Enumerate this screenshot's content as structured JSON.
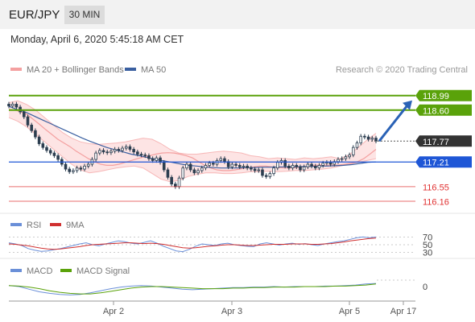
{
  "header": {
    "pair": "EUR/JPY",
    "timeframe": "30 MIN",
    "datetime": "Monday, April 6, 2020 5:45:18 AM CET"
  },
  "colors": {
    "bollinger": "#f4a0a0",
    "bollinger_fill": "#fde4e4",
    "ma50": "#3a5fa0",
    "resistance": "#5aa20a",
    "support_blue": "#1e56d6",
    "support_red": "#e03030",
    "price_tag": "#333333",
    "rsi": "#6a8fd8",
    "rsi_ma": "#d03030",
    "macd": "#6a8fd8",
    "macd_signal": "#5aa20a"
  },
  "chart_data": [
    {
      "type": "candlestick",
      "legend": [
        {
          "label": "MA 20 + Bollinger Bands",
          "color": "#f4a0a0"
        },
        {
          "label": "MA 50",
          "color": "#3a5fa0"
        }
      ],
      "watermark": "Research © 2020 Trading Central",
      "ylim": [
        115.9,
        119.35
      ],
      "x_ticks": [
        "Apr 2",
        "Apr 3",
        "Apr 5",
        "Apr 17"
      ],
      "levels": [
        {
          "value": 118.99,
          "label": "118.99",
          "style": "resistance"
        },
        {
          "value": 118.6,
          "label": "118.60",
          "style": "resistance"
        },
        {
          "value": 117.77,
          "label": "117.77",
          "style": "last"
        },
        {
          "value": 117.21,
          "label": "117.21",
          "style": "support_blue"
        },
        {
          "value": 116.55,
          "label": "116.55",
          "style": "support_red"
        },
        {
          "value": 116.16,
          "label": "116.16",
          "style": "support_red"
        }
      ],
      "close": [
        118.71,
        118.76,
        118.68,
        118.55,
        118.42,
        118.2,
        118.05,
        117.88,
        117.7,
        117.6,
        117.52,
        117.45,
        117.38,
        117.28,
        117.15,
        117.02,
        116.95,
        116.98,
        117.05,
        117.02,
        117.1,
        117.15,
        117.28,
        117.45,
        117.52,
        117.48,
        117.46,
        117.5,
        117.55,
        117.52,
        117.58,
        117.62,
        117.55,
        117.48,
        117.42,
        117.4,
        117.38,
        117.3,
        117.25,
        117.32,
        117.2,
        117.0,
        116.8,
        116.62,
        116.55,
        116.78,
        117.05,
        117.15,
        117.0,
        116.92,
        116.98,
        117.05,
        117.12,
        117.18,
        117.15,
        117.25,
        117.3,
        117.22,
        117.08,
        117.15,
        117.12,
        117.08,
        117.1,
        117.05,
        117.02,
        116.98,
        117.0,
        116.85,
        116.82,
        116.9,
        117.05,
        117.2,
        117.25,
        117.1,
        117.05,
        117.12,
        117.08,
        117.0,
        117.08,
        117.15,
        117.1,
        117.05,
        117.12,
        117.18,
        117.2,
        117.15,
        117.22,
        117.28,
        117.3,
        117.35,
        117.4,
        117.6,
        117.72,
        117.9,
        117.88,
        117.82,
        117.85,
        117.77
      ],
      "ma20": [
        118.62,
        118.6,
        118.55,
        118.48,
        118.35,
        118.22,
        118.08,
        117.95,
        117.82,
        117.72,
        117.62,
        117.5,
        117.4,
        117.3,
        117.22,
        117.15,
        117.12,
        117.12,
        117.15,
        117.2,
        117.25,
        117.3,
        117.34,
        117.38,
        117.42,
        117.45,
        117.46,
        117.45,
        117.42,
        117.38,
        117.32,
        117.22,
        117.12,
        117.05,
        117.0,
        116.98,
        116.98,
        117.0,
        117.03,
        117.06,
        117.08,
        117.1,
        117.1,
        117.08,
        117.06,
        117.05,
        117.05,
        117.06,
        117.08,
        117.1,
        117.12,
        117.13,
        117.12,
        117.12,
        117.13,
        117.15,
        117.18,
        117.22,
        117.3,
        117.42,
        117.55
      ],
      "ma50": [
        118.7,
        118.62,
        118.55,
        118.45,
        118.35,
        118.25,
        118.15,
        118.05,
        117.95,
        117.85,
        117.76,
        117.68,
        117.6,
        117.54,
        117.48,
        117.42,
        117.38,
        117.33,
        117.28,
        117.24,
        117.2,
        117.16,
        117.12,
        117.1,
        117.08,
        117.06,
        117.05,
        117.05,
        117.05,
        117.06,
        117.06,
        117.07,
        117.07,
        117.08,
        117.08,
        117.08,
        117.09,
        117.09,
        117.1,
        117.1,
        117.11,
        117.12,
        117.14,
        117.17,
        117.2,
        117.21
      ],
      "bb_upper": [
        118.8,
        118.85,
        118.75,
        118.6,
        118.4,
        118.2,
        118.0,
        117.85,
        117.75,
        117.7,
        117.68,
        117.7,
        117.72,
        117.75,
        117.8,
        117.85,
        117.82,
        117.7,
        117.55,
        117.45,
        117.42,
        117.42,
        117.45,
        117.48,
        117.5,
        117.48,
        117.45,
        117.38,
        117.35,
        117.3,
        117.32,
        117.3,
        117.28,
        117.32,
        117.3,
        117.32,
        117.35,
        117.3,
        117.4,
        117.6,
        117.8,
        117.98
      ],
      "bb_lower": [
        118.4,
        118.3,
        118.15,
        117.95,
        117.75,
        117.55,
        117.35,
        117.15,
        117.0,
        116.92,
        116.95,
        117.0,
        117.05,
        117.08,
        117.1,
        117.05,
        116.9,
        116.75,
        116.68,
        116.72,
        116.82,
        116.88,
        116.92,
        116.92,
        116.9,
        116.9,
        116.92,
        116.95,
        116.95,
        116.96,
        116.95,
        116.96,
        116.98,
        116.98,
        117.0,
        117.02,
        117.05,
        117.1,
        117.15,
        117.2,
        117.25,
        117.3
      ]
    },
    {
      "type": "line",
      "title": "RSI",
      "series": [
        {
          "name": "RSI",
          "color": "#6a8fd8"
        },
        {
          "name": "9MA",
          "color": "#d03030"
        }
      ],
      "ylim": [
        25,
        75
      ],
      "y_ticks": [
        "70",
        "50",
        "30"
      ],
      "rsi": [
        55,
        52,
        48,
        40,
        36,
        33,
        34,
        37,
        40,
        44,
        48,
        52,
        55,
        50,
        47,
        52,
        56,
        60,
        58,
        54,
        52,
        56,
        60,
        54,
        46,
        40,
        34,
        32,
        38,
        46,
        52,
        50,
        48,
        52,
        54,
        50,
        48,
        46,
        45,
        52,
        55,
        52,
        49,
        52,
        54,
        51,
        53,
        50,
        48,
        52,
        55,
        58,
        60,
        64,
        68,
        70,
        68,
        70
      ],
      "rsi_ma": [
        52,
        51,
        49,
        47,
        44,
        41,
        39,
        38,
        39,
        41,
        43,
        45,
        48,
        50,
        51,
        52,
        53,
        54,
        55,
        55,
        54,
        53,
        54,
        53,
        51,
        48,
        45,
        42,
        41,
        42,
        44,
        46,
        47,
        49,
        50,
        50,
        49,
        48,
        48,
        49,
        50,
        51,
        51,
        51,
        52,
        52,
        52,
        51,
        51,
        52,
        53,
        55,
        57,
        60,
        62,
        64,
        66,
        67
      ]
    },
    {
      "type": "line",
      "title": "MACD",
      "series": [
        {
          "name": "MACD",
          "color": "#6a8fd8"
        },
        {
          "name": "MACD Signal",
          "color": "#5aa20a"
        }
      ],
      "ylim": [
        -0.2,
        0.2
      ],
      "y_ticks": [
        "0"
      ],
      "macd": [
        0.02,
        0.0,
        -0.05,
        -0.1,
        -0.13,
        -0.15,
        -0.16,
        -0.15,
        -0.12,
        -0.08,
        -0.04,
        -0.01,
        0.01,
        0.02,
        0.01,
        -0.01,
        -0.03,
        -0.05,
        -0.06,
        -0.05,
        -0.04,
        -0.03,
        -0.02,
        -0.02,
        -0.01,
        -0.01,
        0.0,
        -0.01,
        0.0,
        0.0,
        0.0,
        0.01,
        0.01,
        0.02,
        0.03,
        0.05,
        0.06
      ],
      "signal": [
        0.02,
        0.01,
        -0.01,
        -0.04,
        -0.08,
        -0.11,
        -0.13,
        -0.14,
        -0.14,
        -0.12,
        -0.09,
        -0.06,
        -0.03,
        -0.01,
        0.0,
        0.0,
        -0.01,
        -0.02,
        -0.03,
        -0.04,
        -0.04,
        -0.04,
        -0.03,
        -0.03,
        -0.02,
        -0.02,
        -0.01,
        -0.01,
        -0.01,
        0.0,
        0.0,
        0.0,
        0.01,
        0.01,
        0.02,
        0.03,
        0.05
      ]
    }
  ]
}
